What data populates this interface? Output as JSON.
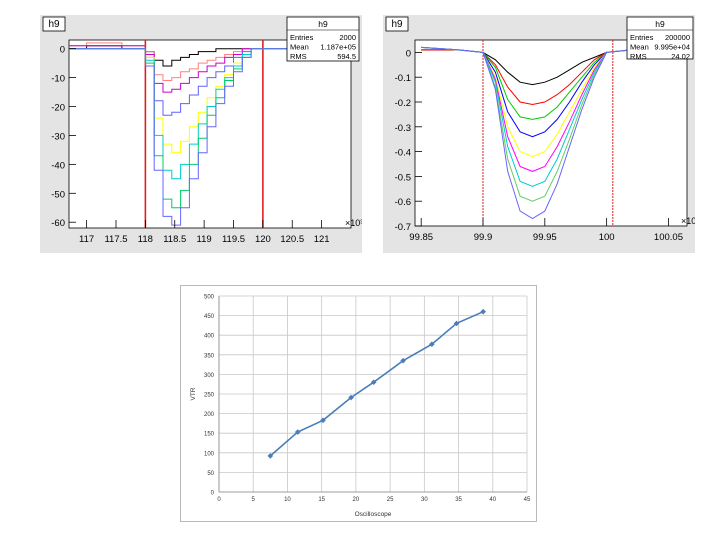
{
  "chart_data": [
    {
      "type": "line",
      "title": "h9",
      "stats": {
        "name": "h9",
        "rows": [
          [
            "Entries",
            "2000"
          ],
          [
            "Mean",
            "1.187e+05"
          ],
          [
            "RMS",
            "594.5"
          ]
        ]
      },
      "x_exponent": "×10³",
      "xlim": [
        116.7,
        121.5
      ],
      "ylim": [
        -62,
        3
      ],
      "x_ticks": [
        {
          "v": 117,
          "t": "117"
        },
        {
          "v": 117.5,
          "t": "117.5"
        },
        {
          "v": 118,
          "t": "118"
        },
        {
          "v": 118.5,
          "t": "118.5"
        },
        {
          "v": 119,
          "t": "119"
        },
        {
          "v": 119.5,
          "t": "119.5"
        },
        {
          "v": 120,
          "t": "120"
        },
        {
          "v": 120.5,
          "t": "120.5"
        },
        {
          "v": 121,
          "t": "121"
        }
      ],
      "y_ticks": [
        {
          "v": 0,
          "t": "0"
        },
        {
          "v": -10,
          "t": "-10"
        },
        {
          "v": -20,
          "t": "-20"
        },
        {
          "v": -30,
          "t": "-30"
        },
        {
          "v": -40,
          "t": "-40"
        },
        {
          "v": -50,
          "t": "-50"
        },
        {
          "v": -60,
          "t": "-60"
        }
      ],
      "markers": [
        {
          "x": 118.0,
          "color": "#e02020"
        },
        {
          "x": 120.0,
          "color": "#e02020"
        }
      ],
      "series": [
        {
          "color": "#000000",
          "step": true,
          "x": [
            116.7,
            117.0,
            117.6,
            118.0,
            118.15,
            118.3,
            118.45,
            118.6,
            118.75,
            118.9,
            119.05,
            119.2,
            119.35,
            119.5,
            119.65,
            121.5
          ],
          "y": [
            0,
            1,
            0,
            -1,
            -4,
            -6,
            -4,
            -3,
            -2,
            -1,
            -1,
            0,
            0,
            0,
            0,
            0
          ]
        },
        {
          "color": "#ff8080",
          "step": true,
          "x": [
            116.7,
            117.0,
            117.6,
            118.0,
            118.15,
            118.3,
            118.45,
            118.6,
            118.75,
            118.9,
            119.05,
            119.2,
            119.35,
            119.5,
            119.65,
            119.8,
            121.5
          ],
          "y": [
            1,
            2,
            1,
            -1,
            -9,
            -11,
            -10,
            -8,
            -7,
            -5,
            -4,
            -3,
            -2,
            -1,
            0,
            0,
            0
          ]
        },
        {
          "color": "#cc00cc",
          "step": true,
          "x": [
            116.7,
            117.6,
            118.0,
            118.15,
            118.3,
            118.45,
            118.6,
            118.75,
            118.9,
            119.05,
            119.2,
            119.35,
            119.5,
            119.65,
            119.8,
            121.5
          ],
          "y": [
            1,
            1,
            -2,
            -12,
            -15,
            -14,
            -12,
            -10,
            -8,
            -6,
            -5,
            -3,
            -2,
            0,
            0,
            0
          ]
        },
        {
          "color": "#6060ff",
          "step": true,
          "x": [
            116.7,
            118.0,
            118.15,
            118.3,
            118.45,
            118.6,
            118.75,
            118.9,
            119.05,
            119.2,
            119.35,
            119.5,
            119.65,
            119.8,
            121.5
          ],
          "y": [
            0,
            -3,
            -18,
            -23,
            -22,
            -19,
            -16,
            -13,
            -10,
            -8,
            -6,
            -3,
            -1,
            0,
            0
          ]
        },
        {
          "color": "#ffff00",
          "step": true,
          "x": [
            116.7,
            118.0,
            118.15,
            118.3,
            118.45,
            118.6,
            118.75,
            118.9,
            119.05,
            119.2,
            119.35,
            119.5,
            119.65,
            119.8,
            121.5
          ],
          "y": [
            0,
            -3,
            -24,
            -33,
            -36,
            -32,
            -27,
            -22,
            -17,
            -13,
            -9,
            -5,
            -2,
            0,
            0
          ]
        },
        {
          "color": "#00cccc",
          "step": true,
          "x": [
            116.7,
            118.0,
            118.15,
            118.3,
            118.45,
            118.6,
            118.75,
            118.9,
            119.05,
            119.2,
            119.35,
            119.5,
            119.65,
            119.8,
            121.5
          ],
          "y": [
            0,
            -4,
            -30,
            -42,
            -45,
            -40,
            -33,
            -26,
            -20,
            -14,
            -10,
            -6,
            -2,
            0,
            0
          ]
        },
        {
          "color": "#00cc66",
          "step": true,
          "x": [
            116.7,
            118.0,
            118.15,
            118.3,
            118.45,
            118.6,
            118.75,
            118.9,
            119.05,
            119.2,
            119.35,
            119.5,
            119.65,
            119.8,
            121.5
          ],
          "y": [
            0,
            -5,
            -37,
            -52,
            -55,
            -49,
            -40,
            -31,
            -23,
            -17,
            -11,
            -7,
            -3,
            0,
            0
          ]
        },
        {
          "color": "#6666ff",
          "step": true,
          "x": [
            116.7,
            118.0,
            118.15,
            118.3,
            118.45,
            118.6,
            118.75,
            118.9,
            119.05,
            119.2,
            119.35,
            119.5,
            119.65,
            119.8,
            121.5
          ],
          "y": [
            0,
            -6,
            -42,
            -58,
            -61,
            -55,
            -45,
            -36,
            -27,
            -19,
            -13,
            -8,
            -3,
            0,
            0
          ]
        }
      ]
    },
    {
      "type": "line",
      "title": "h9",
      "stats": {
        "name": "h9",
        "rows": [
          [
            "Entries",
            "200000"
          ],
          [
            "Mean",
            "9.995e+04"
          ],
          [
            "RMS",
            "24.02"
          ]
        ]
      },
      "x_exponent": "×10³",
      "xlim": [
        99.845,
        100.065
      ],
      "ylim": [
        -0.7,
        0.05
      ],
      "x_ticks": [
        {
          "v": 99.85,
          "t": "99.85"
        },
        {
          "v": 99.9,
          "t": "99.9"
        },
        {
          "v": 99.95,
          "t": "99.95"
        },
        {
          "v": 100,
          "t": "100"
        },
        {
          "v": 100.05,
          "t": "100.05"
        }
      ],
      "y_ticks": [
        {
          "v": 0,
          "t": "0"
        },
        {
          "v": -0.1,
          "t": "-0.1"
        },
        {
          "v": -0.2,
          "t": "-0.2"
        },
        {
          "v": -0.3,
          "t": "-0.3"
        },
        {
          "v": -0.4,
          "t": "-0.4"
        },
        {
          "v": -0.5,
          "t": "-0.5"
        },
        {
          "v": -0.6,
          "t": "-0.6"
        },
        {
          "v": -0.7,
          "t": "-0.7"
        }
      ],
      "markers": [
        {
          "x": 99.9,
          "color": "#e02020"
        },
        {
          "x": 100.005,
          "color": "#e02020"
        }
      ],
      "series": [
        {
          "color": "#000000",
          "x": [
            99.85,
            99.88,
            99.9,
            99.91,
            99.92,
            99.93,
            99.94,
            99.95,
            99.96,
            99.97,
            99.98,
            99.99,
            100.0,
            100.02,
            100.05
          ],
          "y": [
            0.01,
            0.01,
            0.0,
            -0.03,
            -0.08,
            -0.12,
            -0.13,
            -0.12,
            -0.1,
            -0.07,
            -0.04,
            -0.02,
            0.0,
            0.01,
            0.0
          ]
        },
        {
          "color": "#ff0000",
          "x": [
            99.85,
            99.88,
            99.9,
            99.91,
            99.92,
            99.93,
            99.94,
            99.95,
            99.96,
            99.97,
            99.98,
            99.99,
            100.0,
            100.02,
            100.05
          ],
          "y": [
            0.01,
            0.01,
            0.0,
            -0.05,
            -0.14,
            -0.2,
            -0.21,
            -0.2,
            -0.17,
            -0.13,
            -0.08,
            -0.03,
            0.0,
            0.01,
            0.0
          ]
        },
        {
          "color": "#00cc00",
          "x": [
            99.85,
            99.88,
            99.9,
            99.91,
            99.92,
            99.93,
            99.94,
            99.95,
            99.96,
            99.97,
            99.98,
            99.99,
            100.0,
            100.02,
            100.05
          ],
          "y": [
            0.02,
            0.01,
            0.0,
            -0.06,
            -0.19,
            -0.26,
            -0.27,
            -0.26,
            -0.22,
            -0.16,
            -0.1,
            -0.04,
            0.0,
            0.01,
            0.0
          ]
        },
        {
          "color": "#0000ff",
          "x": [
            99.85,
            99.88,
            99.9,
            99.91,
            99.92,
            99.93,
            99.94,
            99.95,
            99.96,
            99.97,
            99.98,
            99.99,
            100.0,
            100.02,
            100.05
          ],
          "y": [
            0.02,
            0.01,
            0.0,
            -0.08,
            -0.24,
            -0.32,
            -0.34,
            -0.32,
            -0.27,
            -0.2,
            -0.12,
            -0.05,
            0.0,
            0.01,
            0.0
          ]
        },
        {
          "color": "#ffff00",
          "x": [
            99.85,
            99.88,
            99.9,
            99.91,
            99.92,
            99.93,
            99.94,
            99.95,
            99.96,
            99.97,
            99.98,
            99.99,
            100.0,
            100.02,
            100.05
          ],
          "y": [
            0.02,
            0.01,
            0.0,
            -0.1,
            -0.3,
            -0.4,
            -0.42,
            -0.4,
            -0.33,
            -0.24,
            -0.15,
            -0.06,
            0.0,
            0.01,
            0.0
          ]
        },
        {
          "color": "#ff00ff",
          "x": [
            99.85,
            99.88,
            99.9,
            99.91,
            99.92,
            99.93,
            99.94,
            99.95,
            99.96,
            99.97,
            99.98,
            99.99,
            100.0,
            100.02,
            100.05
          ],
          "y": [
            0.02,
            0.01,
            0.0,
            -0.11,
            -0.34,
            -0.46,
            -0.48,
            -0.46,
            -0.38,
            -0.28,
            -0.17,
            -0.07,
            0.0,
            0.01,
            0.0
          ]
        },
        {
          "color": "#00cccc",
          "x": [
            99.85,
            99.88,
            99.9,
            99.91,
            99.92,
            99.93,
            99.94,
            99.95,
            99.96,
            99.97,
            99.98,
            99.99,
            100.0,
            100.02,
            100.05
          ],
          "y": [
            0.02,
            0.01,
            0.0,
            -0.12,
            -0.38,
            -0.52,
            -0.54,
            -0.52,
            -0.43,
            -0.31,
            -0.19,
            -0.08,
            0.0,
            0.01,
            0.0
          ]
        },
        {
          "color": "#66cc66",
          "x": [
            99.85,
            99.88,
            99.9,
            99.91,
            99.92,
            99.93,
            99.94,
            99.95,
            99.96,
            99.97,
            99.98,
            99.99,
            100.0,
            100.02,
            100.05
          ],
          "y": [
            0.02,
            0.01,
            0.0,
            -0.14,
            -0.43,
            -0.58,
            -0.6,
            -0.58,
            -0.48,
            -0.35,
            -0.21,
            -0.09,
            0.0,
            0.01,
            0.0
          ]
        },
        {
          "color": "#6666ff",
          "x": [
            99.85,
            99.88,
            99.9,
            99.91,
            99.92,
            99.93,
            99.94,
            99.95,
            99.96,
            99.97,
            99.98,
            99.99,
            100.0,
            100.02,
            100.05
          ],
          "y": [
            0.02,
            0.01,
            0.0,
            -0.15,
            -0.48,
            -0.64,
            -0.67,
            -0.64,
            -0.53,
            -0.38,
            -0.23,
            -0.1,
            0.0,
            0.01,
            0.0
          ]
        }
      ]
    },
    {
      "type": "line",
      "xlabel": "Oscilloscope",
      "ylabel": "VTR",
      "xlim": [
        0,
        45
      ],
      "ylim": [
        0,
        500
      ],
      "x_ticks": [
        0,
        5,
        10,
        15,
        20,
        25,
        30,
        35,
        40,
        45
      ],
      "y_ticks": [
        0,
        50,
        100,
        150,
        200,
        250,
        300,
        350,
        400,
        450,
        500
      ],
      "grid": true,
      "line_color": "#4a7ebb",
      "x": [
        7.5,
        11.5,
        15.2,
        19.3,
        22.6,
        26.9,
        31.1,
        34.7,
        38.6
      ],
      "y": [
        92,
        153,
        183,
        241,
        280,
        335,
        377,
        430,
        460
      ]
    }
  ]
}
